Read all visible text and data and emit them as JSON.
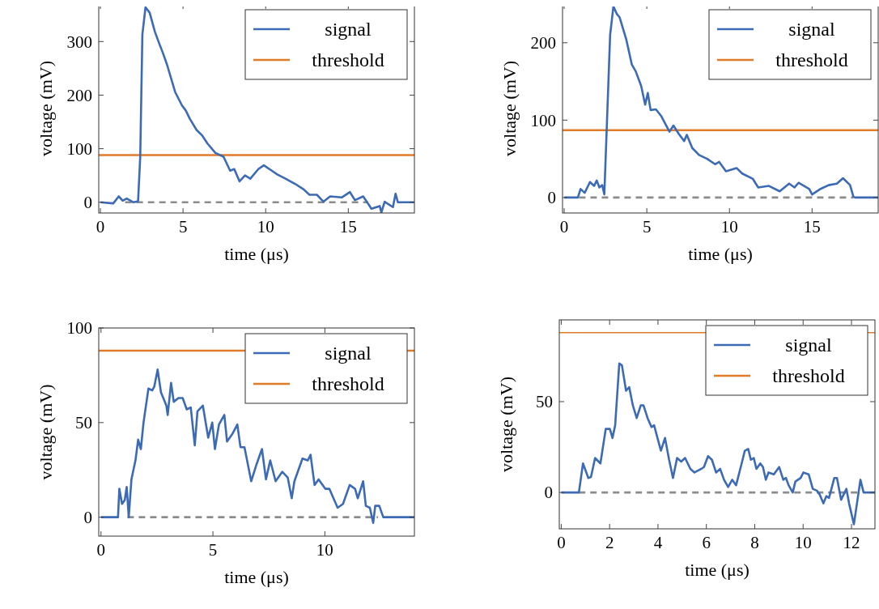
{
  "chart_data": [
    {
      "type": "line",
      "xlabel": "time (μs)",
      "ylabel": "voltage (mV)",
      "xlim": [
        -0.1,
        19
      ],
      "ylim": [
        -20,
        370
      ],
      "xticks": [
        0,
        5,
        10,
        15
      ],
      "yticks": [
        0,
        100,
        200,
        300
      ],
      "legend": "top right",
      "grid": false,
      "line_style": "solid",
      "marker": "none",
      "ref_lines": [
        {
          "axis": "y",
          "value": 88,
          "label": "threshold",
          "color": "#e07b2a"
        }
      ],
      "series": [
        {
          "x": [
            1.5,
            16.2
          ],
          "values": [
            0,
            0
          ],
          "color": "#8c8c8c",
          "line_style": "dashed"
        },
        {
          "name": "signal",
          "color": "#3c6ab4",
          "x": [
            0,
            0.78,
            1.11,
            1.35,
            1.59,
            2.0,
            2.28,
            2.41,
            2.54,
            2.73,
            2.98,
            3.3,
            3.54,
            3.79,
            4.03,
            4.52,
            4.93,
            5.17,
            5.41,
            5.82,
            6.15,
            6.47,
            6.96,
            7.45,
            7.85,
            8.1,
            8.42,
            8.75,
            9.07,
            9.56,
            9.89,
            10.37,
            10.7,
            11.2,
            11.8,
            12.3,
            12.65,
            13.1,
            13.5,
            13.9,
            14.6,
            15.1,
            15.4,
            15.9,
            16.4,
            16.9,
            17.0,
            17.2,
            17.7,
            17.86,
            18.0,
            19
          ],
          "values": [
            0,
            -2,
            11,
            3,
            7,
            0,
            2,
            85,
            313,
            364,
            354,
            318,
            298,
            278,
            257,
            206,
            181,
            171,
            156,
            135,
            125,
            110,
            92,
            85,
            59,
            62,
            39,
            50,
            44,
            62,
            69,
            59,
            52,
            44,
            34,
            24,
            14,
            14,
            1,
            11,
            9,
            19,
            4,
            11,
            -12,
            -7,
            -19,
            1,
            -9,
            16,
            0,
            0
          ]
        }
      ]
    },
    {
      "type": "line",
      "xlabel": "time (μs)",
      "ylabel": "voltage (mV)",
      "xlim": [
        -0.1,
        19
      ],
      "ylim": [
        -20,
        250
      ],
      "xticks": [
        0,
        5,
        10,
        15
      ],
      "yticks": [
        0,
        100,
        200
      ],
      "legend": "top right",
      "grid": false,
      "line_style": "solid",
      "marker": "none",
      "ref_lines": [
        {
          "axis": "y",
          "value": 87,
          "label": "threshold",
          "color": "#e07b2a"
        }
      ],
      "series": [
        {
          "x": [
            0.9,
            17.5
          ],
          "values": [
            0,
            0
          ],
          "color": "#8c8c8c",
          "line_style": "dashed"
        },
        {
          "name": "signal",
          "color": "#3c6ab4",
          "x": [
            0,
            0.83,
            0.99,
            1.24,
            1.56,
            1.81,
            1.97,
            2.13,
            2.3,
            2.43,
            2.62,
            2.78,
            2.98,
            3.19,
            3.35,
            3.76,
            4.09,
            4.33,
            4.66,
            4.9,
            5.06,
            5.23,
            5.55,
            5.88,
            6.37,
            6.61,
            6.94,
            7.26,
            7.42,
            7.75,
            8.16,
            8.65,
            9.13,
            9.38,
            9.79,
            10.44,
            10.77,
            11.42,
            11.74,
            12.39,
            13.04,
            13.61,
            13.94,
            14.18,
            14.83,
            15.0,
            15.5,
            16.0,
            16.5,
            16.87,
            17.3,
            17.5,
            17.6,
            19
          ],
          "values": [
            0,
            0,
            11,
            6,
            20,
            15,
            22,
            13,
            16,
            4,
            116,
            210,
            247,
            237,
            233,
            204,
            172,
            163,
            144,
            120,
            135,
            113,
            114,
            105,
            85,
            93,
            82,
            73,
            81,
            64,
            55,
            50,
            43,
            46,
            34,
            38,
            31,
            24,
            13,
            15,
            8,
            18,
            13,
            19,
            11,
            4,
            11,
            16,
            18,
            25,
            16,
            1,
            0,
            0
          ]
        }
      ]
    },
    {
      "type": "line",
      "xlabel": "time (μs)",
      "ylabel": "voltage (mV)",
      "xlim": [
        -0.1,
        14
      ],
      "ylim": [
        -10,
        100
      ],
      "xticks": [
        0,
        5,
        10
      ],
      "yticks": [
        0,
        50,
        100
      ],
      "legend": "top right",
      "grid": false,
      "line_style": "solid",
      "marker": "none",
      "ref_lines": [
        {
          "axis": "y",
          "value": 88,
          "label": "threshold",
          "color": "#e07b2a"
        }
      ],
      "series": [
        {
          "x": [
            1.18,
            12.37
          ],
          "values": [
            0,
            0
          ],
          "color": "#8c8c8c",
          "line_style": "dashed"
        },
        {
          "name": "signal",
          "color": "#3c6ab4",
          "x": [
            0,
            0.76,
            0.82,
            0.94,
            1.06,
            1.15,
            1.24,
            1.36,
            1.54,
            1.66,
            1.78,
            1.9,
            2.12,
            2.29,
            2.38,
            2.53,
            2.68,
            2.92,
            2.98,
            3.13,
            3.25,
            3.46,
            3.65,
            3.83,
            4.01,
            4.19,
            4.31,
            4.55,
            4.79,
            4.97,
            5.09,
            5.27,
            5.51,
            5.63,
            5.87,
            6.09,
            6.23,
            6.41,
            6.71,
            6.95,
            7.19,
            7.37,
            7.56,
            7.8,
            8.1,
            8.34,
            8.52,
            8.64,
            9.0,
            9.24,
            9.36,
            9.54,
            9.72,
            10.02,
            10.2,
            10.57,
            10.81,
            11.11,
            11.35,
            11.47,
            11.71,
            11.83,
            12.01,
            12.16,
            12.25,
            12.43,
            12.61,
            14
          ],
          "values": [
            0,
            0,
            15,
            7,
            9,
            16,
            0,
            20,
            30,
            41,
            36,
            50,
            68,
            67,
            69,
            78,
            66,
            59,
            54,
            71,
            61,
            63,
            63,
            57,
            58,
            38,
            56,
            59,
            42,
            50,
            36,
            49,
            54,
            40,
            44,
            49,
            37,
            37,
            19,
            28,
            36,
            20,
            30,
            19,
            24,
            21,
            10,
            19,
            31,
            30,
            33,
            17,
            20,
            15,
            15,
            5,
            7,
            17,
            15,
            10,
            19,
            6,
            5,
            -3,
            6,
            6,
            0,
            0
          ]
        }
      ]
    },
    {
      "type": "line",
      "xlabel": "time (μs)",
      "ylabel": "voltage (mV)",
      "xlim": [
        -0.08,
        12.97
      ],
      "ylim": [
        -20,
        95
      ],
      "xticks": [
        0,
        2,
        4,
        6,
        8,
        10,
        12
      ],
      "yticks": [
        0,
        50
      ],
      "legend": "top right",
      "grid": false,
      "line_style": "solid",
      "marker": "none",
      "ref_lines": [
        {
          "axis": "y",
          "value": 88,
          "label": "threshold",
          "color": "#e07b2a"
        }
      ],
      "series": [
        {
          "x": [
            0.73,
            12.4
          ],
          "values": [
            0,
            0
          ],
          "color": "#8c8c8c",
          "line_style": "dashed"
        },
        {
          "name": "signal",
          "color": "#3c6ab4",
          "x": [
            0,
            0.73,
            0.9,
            1.12,
            1.23,
            1.4,
            1.62,
            1.84,
            2.01,
            2.12,
            2.23,
            2.4,
            2.51,
            2.68,
            2.81,
            2.96,
            3.12,
            3.29,
            3.4,
            3.57,
            3.73,
            3.84,
            3.96,
            4.12,
            4.29,
            4.46,
            4.62,
            4.79,
            4.96,
            5.12,
            5.34,
            5.51,
            5.79,
            5.9,
            6.07,
            6.23,
            6.4,
            6.57,
            6.73,
            6.9,
            7.07,
            7.23,
            7.46,
            7.59,
            7.73,
            7.84,
            7.96,
            8.07,
            8.23,
            8.34,
            8.46,
            8.57,
            8.79,
            9.01,
            9.18,
            9.29,
            9.4,
            9.57,
            9.68,
            9.9,
            10.01,
            10.23,
            10.4,
            10.57,
            10.68,
            10.84,
            10.96,
            11.07,
            11.29,
            11.4,
            11.57,
            11.79,
            11.9,
            12.1,
            12.37,
            12.5,
            12.97
          ],
          "values": [
            0,
            0,
            16,
            8,
            8.5,
            19,
            16,
            35,
            35,
            30,
            37,
            71,
            70,
            56,
            58,
            48,
            41,
            48,
            48,
            41,
            36,
            37,
            31,
            23,
            30,
            18,
            8,
            19,
            17,
            19,
            13,
            11,
            13,
            14,
            20,
            18,
            11,
            13,
            7,
            3,
            7,
            4,
            16,
            23,
            24,
            18,
            19,
            13,
            16,
            14,
            7,
            11,
            10,
            14,
            7,
            8,
            4,
            0,
            6,
            8,
            11,
            10,
            2,
            1,
            -1,
            -6,
            -2,
            -3,
            8,
            8,
            -4,
            2,
            -6,
            -17.5,
            7,
            0,
            0
          ]
        }
      ]
    }
  ]
}
